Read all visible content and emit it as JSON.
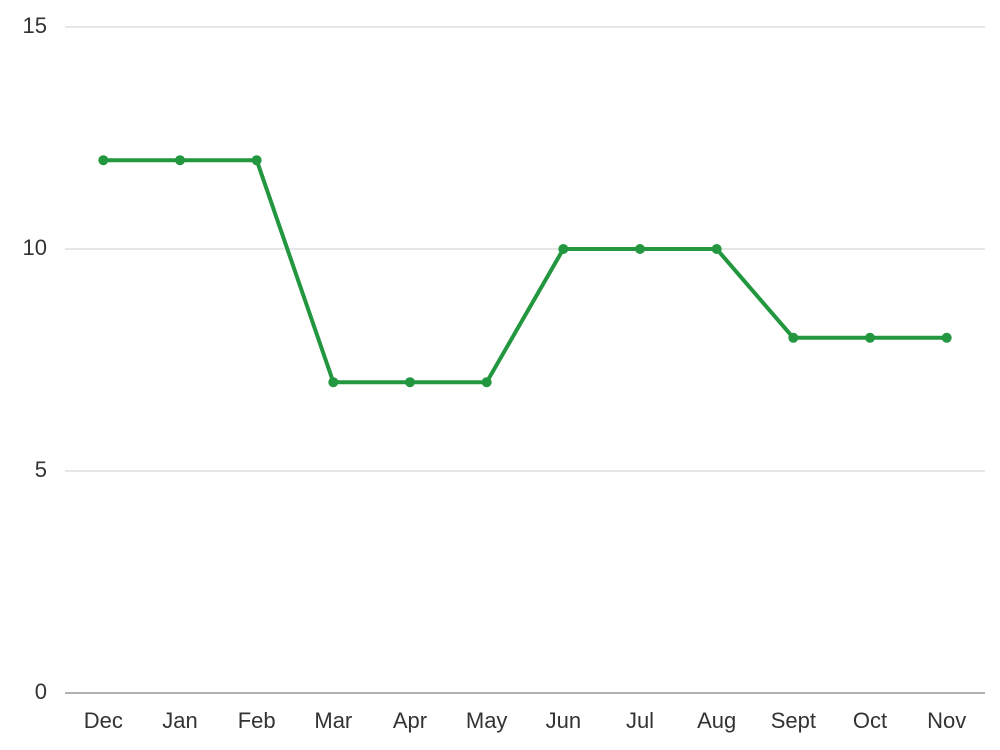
{
  "chart_data": {
    "type": "line",
    "categories": [
      "Dec",
      "Jan",
      "Feb",
      "Mar",
      "Apr",
      "May",
      "Jun",
      "Jul",
      "Aug",
      "Sept",
      "Oct",
      "Nov"
    ],
    "series": [
      {
        "color": "#23973f",
        "values": [
          12,
          12,
          12,
          7,
          7,
          7,
          10,
          10,
          10,
          8,
          8,
          8
        ]
      }
    ],
    "ylim": [
      0,
      15
    ],
    "yticks": [
      0,
      5,
      10,
      15
    ],
    "grid": true
  }
}
